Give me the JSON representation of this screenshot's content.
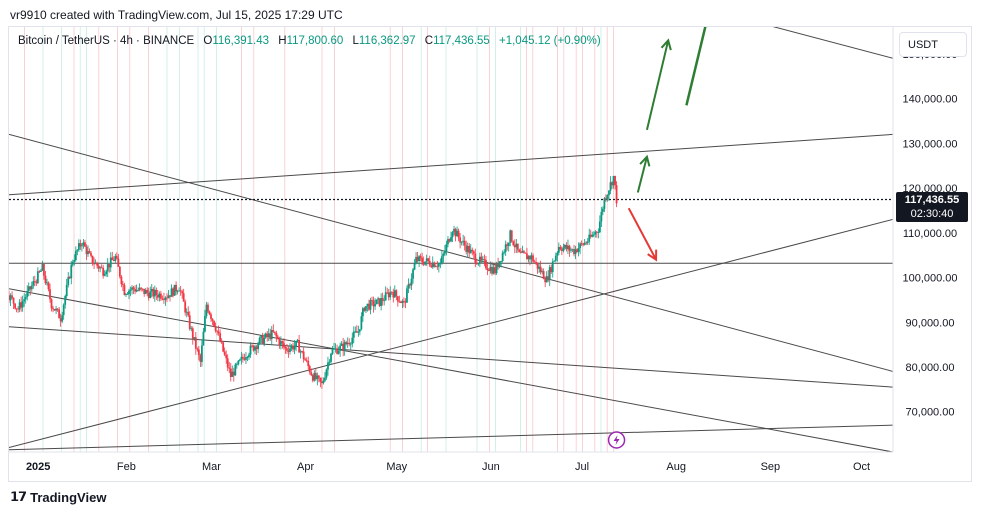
{
  "header": {
    "text": "vr9910 created with TradingView.com, Jul 15, 2025 17:29 UTC"
  },
  "legend": {
    "symbol": "Bitcoin / TetherUS · 4h · BINANCE",
    "o_label": "O",
    "o_value": "116,391.43",
    "h_label": "H",
    "h_value": "117,800.60",
    "l_label": "L",
    "l_value": "116,362.97",
    "c_label": "C",
    "c_value": "117,436.55",
    "change": "+1,045.12 (+0.90%)"
  },
  "currency_button": "USDT",
  "price_tag": {
    "price": "117,436.55",
    "countdown": "02:30:40"
  },
  "brand": "TradingView",
  "colors": {
    "up": "#089981",
    "down": "#f23645",
    "green_arrow": "#2e7d32",
    "red_arrow": "#e53935",
    "line": "#4a4a4a"
  },
  "icons": {
    "lightning": "lightning-icon",
    "logo": "tradingview-logo-icon"
  },
  "chart_data": {
    "type": "candlestick",
    "title": "Bitcoin / TetherUS · 4h · BINANCE",
    "x_tick_labels": [
      "2025",
      "Feb",
      "Mar",
      "Apr",
      "May",
      "Jun",
      "Jul",
      "Aug",
      "Sep",
      "Oct"
    ],
    "y_tick_labels": [
      "150,000.00",
      "140,000.00",
      "130,000.00",
      "120,000.00",
      "110,000.00",
      "100,000.00",
      "90,000.00",
      "80,000.00",
      "70,000.00"
    ],
    "y_ticks": [
      150000,
      140000,
      130000,
      120000,
      110000,
      100000,
      90000,
      80000,
      70000
    ],
    "ylim": [
      61000,
      156000
    ],
    "x_range": [
      "2024-12-27",
      "2025-10-14"
    ],
    "last_price": 117436.55,
    "price_path": [
      [
        "2024-12-27",
        96000
      ],
      [
        "2024-12-30",
        93000
      ],
      [
        "2025-01-03",
        97500
      ],
      [
        "2025-01-07",
        102000
      ],
      [
        "2025-01-10",
        94000
      ],
      [
        "2025-01-13",
        91000
      ],
      [
        "2025-01-17",
        104000
      ],
      [
        "2025-01-20",
        108000
      ],
      [
        "2025-01-23",
        104000
      ],
      [
        "2025-01-27",
        101500
      ],
      [
        "2025-01-31",
        104500
      ],
      [
        "2025-02-03",
        97000
      ],
      [
        "2025-02-06",
        97500
      ],
      [
        "2025-02-11",
        96500
      ],
      [
        "2025-02-17",
        96000
      ],
      [
        "2025-02-21",
        98000
      ],
      [
        "2025-02-25",
        88000
      ],
      [
        "2025-02-28",
        81000
      ],
      [
        "2025-03-02",
        94000
      ],
      [
        "2025-03-05",
        89000
      ],
      [
        "2025-03-10",
        78000
      ],
      [
        "2025-03-15",
        83000
      ],
      [
        "2025-03-20",
        86000
      ],
      [
        "2025-03-24",
        87500
      ],
      [
        "2025-03-28",
        84000
      ],
      [
        "2025-04-01",
        85000
      ],
      [
        "2025-04-06",
        78000
      ],
      [
        "2025-04-09",
        76000
      ],
      [
        "2025-04-12",
        83500
      ],
      [
        "2025-04-16",
        84500
      ],
      [
        "2025-04-21",
        88000
      ],
      [
        "2025-04-23",
        93500
      ],
      [
        "2025-04-28",
        94500
      ],
      [
        "2025-05-02",
        97000
      ],
      [
        "2025-05-06",
        94000
      ],
      [
        "2025-05-08",
        99000
      ],
      [
        "2025-05-10",
        104000
      ],
      [
        "2025-05-14",
        103500
      ],
      [
        "2025-05-18",
        103000
      ],
      [
        "2025-05-22",
        111000
      ],
      [
        "2025-05-25",
        108000
      ],
      [
        "2025-05-30",
        104000
      ],
      [
        "2025-06-05",
        101500
      ],
      [
        "2025-06-10",
        109500
      ],
      [
        "2025-06-13",
        105000
      ],
      [
        "2025-06-17",
        104500
      ],
      [
        "2025-06-22",
        99500
      ],
      [
        "2025-06-26",
        107000
      ],
      [
        "2025-07-01",
        106000
      ],
      [
        "2025-07-06",
        108500
      ],
      [
        "2025-07-09",
        111000
      ],
      [
        "2025-07-11",
        117500
      ],
      [
        "2025-07-14",
        122500
      ],
      [
        "2025-07-15",
        117436.55
      ]
    ],
    "annotations": [
      {
        "type": "horizontal_line",
        "price": 103200
      },
      {
        "type": "trend_line",
        "from": [
          "2024-12-27",
          132000
        ],
        "to": [
          "2025-10-14",
          79000
        ]
      },
      {
        "type": "trend_line",
        "from": [
          "2024-12-27",
          118500
        ],
        "to": [
          "2025-10-14",
          132000
        ]
      },
      {
        "type": "trend_line",
        "from": [
          "2024-12-27",
          62000
        ],
        "to": [
          "2025-10-14",
          113000
        ]
      },
      {
        "type": "trend_line",
        "from": [
          "2024-12-27",
          89000
        ],
        "to": [
          "2025-10-14",
          75500
        ]
      },
      {
        "type": "trend_line",
        "from": [
          "2024-12-27",
          97500
        ],
        "to": [
          "2025-10-14",
          61000
        ]
      },
      {
        "type": "trend_line",
        "from": [
          "2024-12-27",
          61500
        ],
        "to": [
          "2025-10-14",
          67000
        ]
      },
      {
        "type": "trend_line",
        "from": [
          "2025-01-03",
          200000
        ],
        "to": [
          "2025-10-14",
          149000
        ]
      },
      {
        "type": "arrow",
        "color": "green",
        "from": [
          "2025-07-22",
          119000
        ],
        "to": [
          "2025-07-25",
          127000
        ]
      },
      {
        "type": "arrow",
        "color": "green",
        "from": [
          "2025-07-25",
          133000
        ],
        "to": [
          "2025-08-01",
          153000
        ]
      },
      {
        "type": "line",
        "color": "green",
        "from": [
          "2025-08-07",
          138500
        ],
        "to": [
          "2025-08-21",
          178000
        ]
      },
      {
        "type": "arrow",
        "color": "red",
        "from": [
          "2025-07-19",
          115500
        ],
        "to": [
          "2025-07-28",
          104000
        ]
      }
    ]
  }
}
